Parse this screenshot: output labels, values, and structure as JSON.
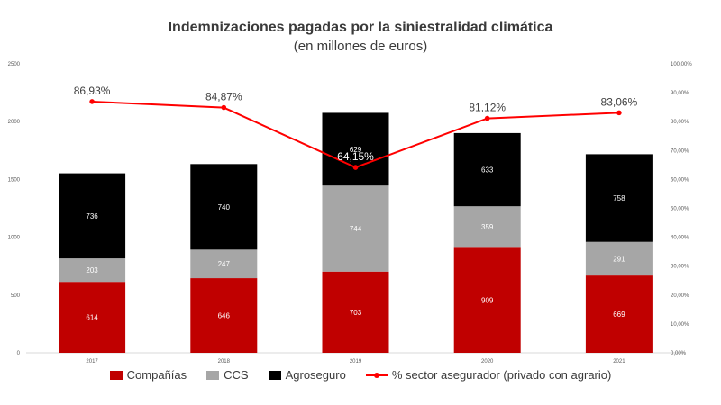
{
  "chart_data": {
    "type": "bar",
    "stacked": true,
    "title": "Indemnizaciones pagadas por la siniestralidad climática",
    "subtitle": "(en millones de euros)",
    "categories": [
      "2017",
      "2018",
      "2019",
      "2020",
      "2021"
    ],
    "series": [
      {
        "name": "Compañías",
        "color": "#c00000",
        "values": [
          614,
          646,
          703,
          909,
          669
        ]
      },
      {
        "name": "CCS",
        "color": "#a6a6a6",
        "values": [
          203,
          247,
          744,
          359,
          291
        ]
      },
      {
        "name": "Agroseguro",
        "color": "#000000",
        "values": [
          736,
          740,
          629,
          633,
          758
        ]
      }
    ],
    "line_series": {
      "name": "% sector asegurador (privado con agrario)",
      "color": "#ff0000",
      "values": [
        86.93,
        84.87,
        64.15,
        81.12,
        83.06
      ],
      "labels": [
        "86,93%",
        "84,87%",
        "64,15%",
        "81,12%",
        "83,06%"
      ]
    },
    "ylim": [
      0,
      2500
    ],
    "yticks": [
      "0",
      "500",
      "1000",
      "1500",
      "2000",
      "2500"
    ],
    "y2lim": [
      0,
      100
    ],
    "y2ticks": [
      "0,00%",
      "10,00%",
      "20,00%",
      "30,00%",
      "40,00%",
      "50,00%",
      "60,00%",
      "70,00%",
      "80,00%",
      "90,00%",
      "100,00%"
    ],
    "legend_position": "bottom"
  }
}
